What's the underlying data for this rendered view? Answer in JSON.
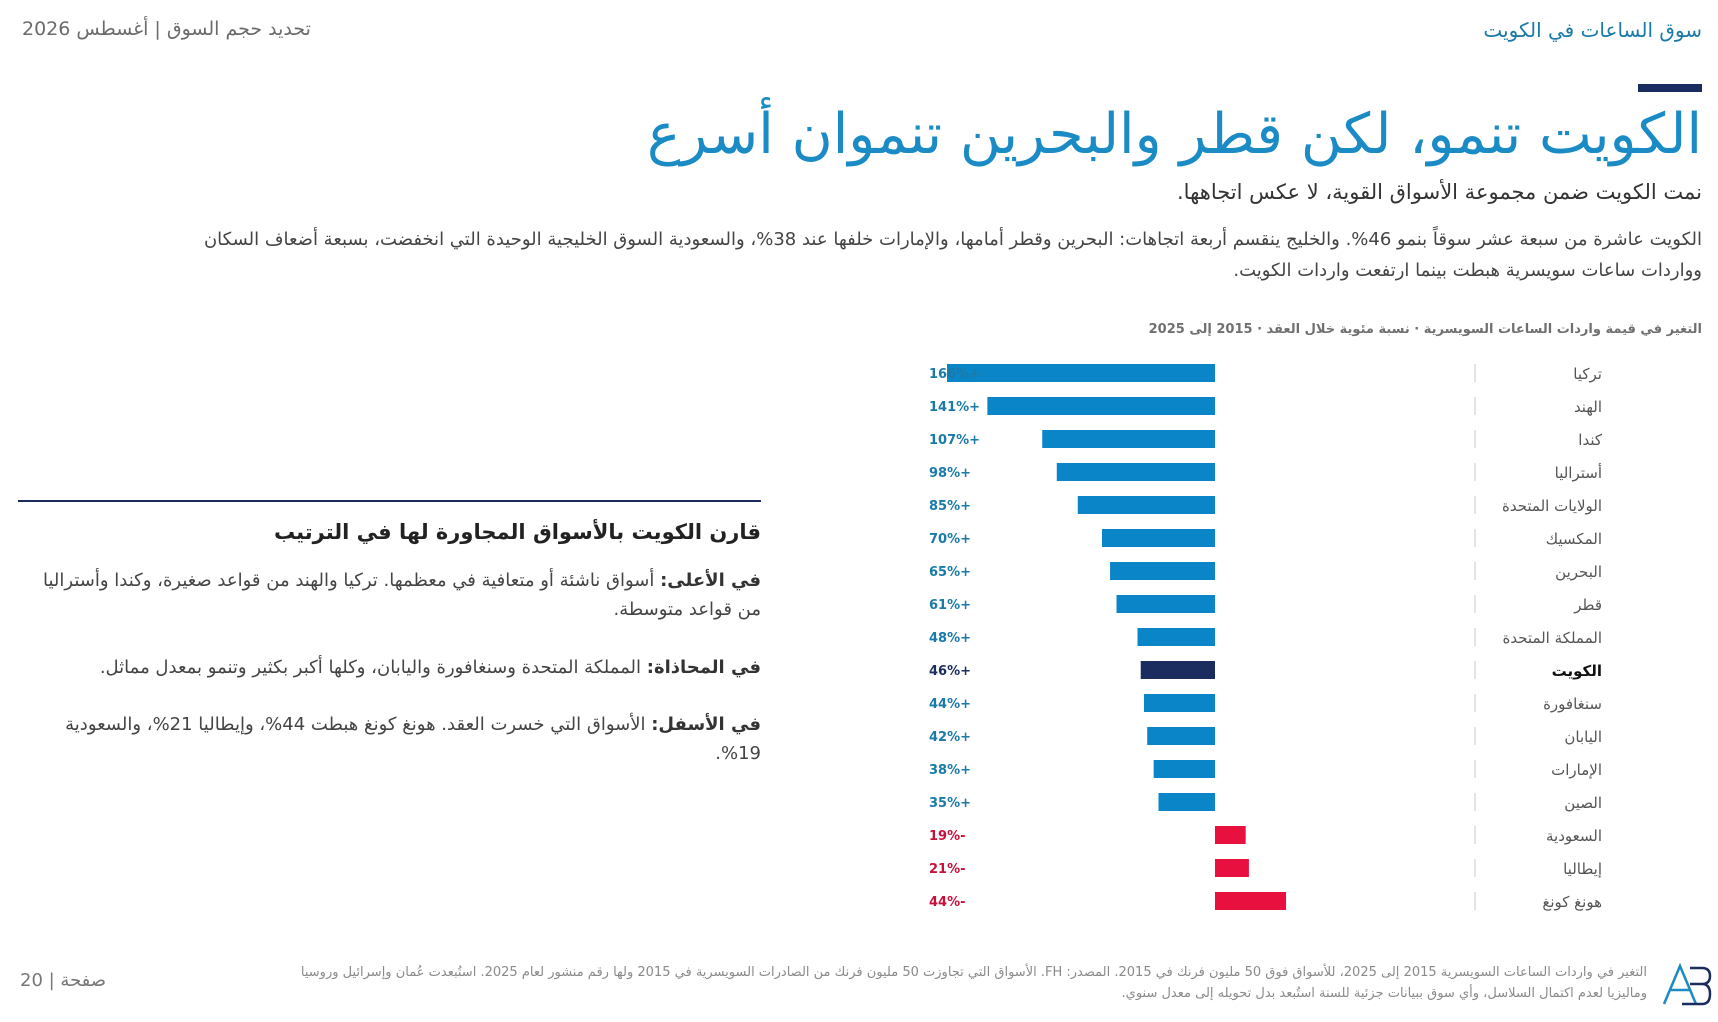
{
  "header": {
    "left_text": "تحديد حجم السوق | أغسطس 2026",
    "right_text": "سوق الساعات في الكويت"
  },
  "title": "الكويت تنمو، لكن قطر والبحرين تنموان أسرع",
  "subtitle": "نمت الكويت ضمن مجموعة الأسواق القوية، لا عكس اتجاهها.",
  "intro": "الكويت عاشرة من سبعة عشر سوقاً بنمو 46%. والخليج ينقسم أربعة اتجاهات: البحرين وقطر أمامها، والإمارات خلفها عند 38%، والسعودية السوق الخليجية الوحيدة التي انخفضت، بسبعة أضعاف السكان وواردات ساعات سويسرية هبطت بينما ارتفعت واردات الكويت.",
  "chart_title": "التغير في قيمة واردات الساعات السويسرية · نسبة مئوية خلال العقد · 2015 إلى 2025",
  "comparison": {
    "heading": "قارن الكويت بالأسواق المجاورة لها في الترتيب",
    "items": [
      {
        "label": "في الأعلى:",
        "text": " أسواق ناشئة أو متعافية في معظمها. تركيا والهند من قواعد صغيرة، وكندا وأستراليا من قواعد متوسطة."
      },
      {
        "label": "في المحاذاة:",
        "text": " المملكة المتحدة وسنغافورة واليابان، وكلها أكبر بكثير وتنمو بمعدل مماثل."
      },
      {
        "label": "في الأسفل:",
        "text": " الأسواق التي خسرت العقد. هونغ كونغ هبطت 44%، وإيطاليا 21%، والسعودية 19%."
      }
    ]
  },
  "footer": {
    "page": "صفحة | 20",
    "note": "التغير في واردات الساعات السويسرية 2015 إلى 2025، للأسواق فوق 50 مليون فرنك في 2015. المصدر: FH. الأسواق التي تجاوزت 50 مليون فرنك من الصادرات السويسرية في 2015 ولها رقم منشور لعام 2025. استُبعدت عُمان وإسرائيل وروسيا وماليزيا لعدم اكتمال السلاسل، وأي سوق ببيانات جزئية للسنة استُبعد بدل تحويله إلى معدل سنوي.",
    "logo_text": "AB"
  },
  "colors": {
    "positive": "#0a85c7",
    "highlight": "#1b2d5e",
    "negative": "#e8103f",
    "title": "#1a8bc4"
  },
  "chart_data": {
    "type": "bar",
    "orientation": "horizontal",
    "categories": [
      "تركيا",
      "الهند",
      "كندا",
      "أستراليا",
      "الولايات المتحدة",
      "المكسيك",
      "البحرين",
      "قطر",
      "المملكة المتحدة",
      "الكويت",
      "سنغافورة",
      "اليابان",
      "الإمارات",
      "الصين",
      "السعودية",
      "إيطاليا",
      "هونغ كونغ"
    ],
    "values": [
      166,
      141,
      107,
      98,
      85,
      70,
      65,
      61,
      48,
      46,
      44,
      42,
      38,
      35,
      -19,
      -21,
      -44
    ],
    "value_labels": [
      "+166%",
      "+141%",
      "+107%",
      "+98%",
      "+85%",
      "+70%",
      "+65%",
      "+61%",
      "+48%",
      "+46%",
      "+44%",
      "+42%",
      "+38%",
      "+35%",
      "-19%",
      "-21%",
      "-44%"
    ],
    "highlight": "الكويت",
    "xlim": [
      -44,
      166
    ],
    "grid": false,
    "legend": "none"
  }
}
